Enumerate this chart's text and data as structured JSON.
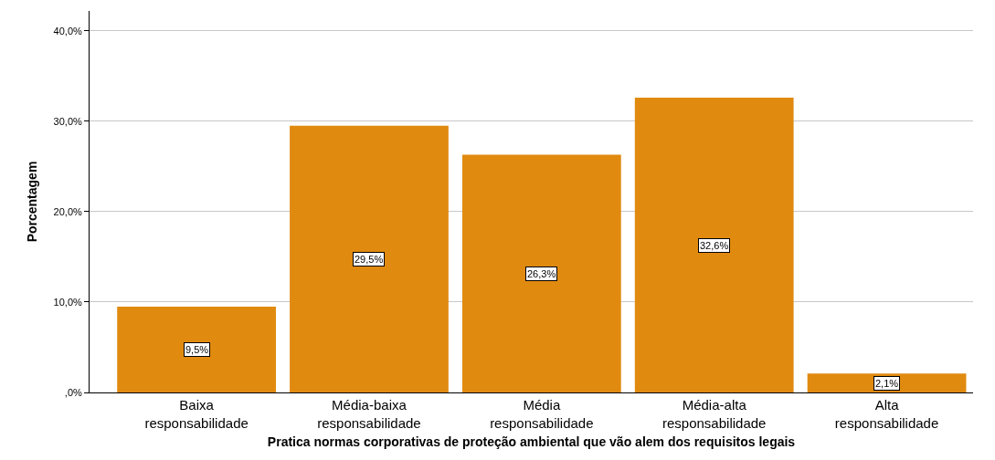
{
  "chart_data": {
    "type": "bar",
    "xlabel": "Pratica normas corporativas de proteção ambiental que vão alem dos requisitos legais",
    "ylabel": "Porcentagem",
    "categories": [
      "Baixa responsabilidade",
      "Média-baixa responsabilidade",
      "Média responsabilidade",
      "Média-alta responsabilidade",
      "Alta responsabilidade"
    ],
    "values": [
      9.5,
      29.5,
      26.3,
      32.6,
      2.1
    ],
    "value_labels": [
      "9,5%",
      "29,5%",
      "26,3%",
      "32,6%",
      "2,1%"
    ],
    "color": "#e08a10",
    "ylim": [
      0,
      42.2
    ],
    "yticks": [
      {
        "value": 0,
        "label": ",0%"
      },
      {
        "value": 10,
        "label": "10,0%"
      },
      {
        "value": 20,
        "label": "20,0%"
      },
      {
        "value": 30,
        "label": "30,0%"
      },
      {
        "value": 40,
        "label": "40,0%"
      }
    ],
    "grid": "y"
  }
}
